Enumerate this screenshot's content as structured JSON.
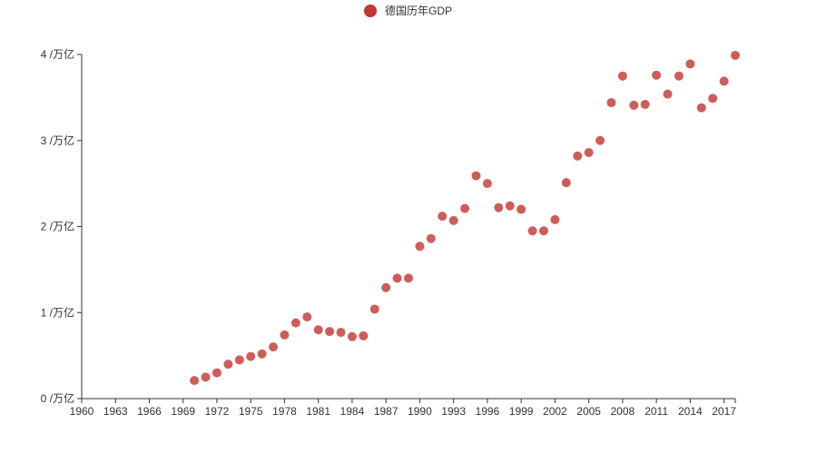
{
  "colors": {
    "series": "#c23531",
    "axis": "#333333"
  },
  "chart_data": {
    "type": "scatter",
    "legend": {
      "position": "top-center",
      "entries": [
        "德国历年GDP"
      ]
    },
    "grid": false,
    "x_ticks": [
      "1960",
      "1963",
      "1966",
      "1969",
      "1972",
      "1975",
      "1978",
      "1981",
      "1984",
      "1987",
      "1990",
      "1993",
      "1996",
      "1999",
      "2002",
      "2005",
      "2008",
      "2011",
      "2014",
      "2017"
    ],
    "y_ticks": [
      "0 /万亿",
      "1 /万亿",
      "2 /万亿",
      "3 /万亿",
      "4 /万亿"
    ],
    "xlim": [
      1960,
      2018
    ],
    "ylim": [
      0,
      4
    ],
    "series": [
      {
        "name": "德国历年GDP",
        "points": [
          {
            "x": 1970,
            "y": 0.21
          },
          {
            "x": 1971,
            "y": 0.25
          },
          {
            "x": 1972,
            "y": 0.3
          },
          {
            "x": 1973,
            "y": 0.4
          },
          {
            "x": 1974,
            "y": 0.45
          },
          {
            "x": 1975,
            "y": 0.49
          },
          {
            "x": 1976,
            "y": 0.52
          },
          {
            "x": 1977,
            "y": 0.6
          },
          {
            "x": 1978,
            "y": 0.74
          },
          {
            "x": 1979,
            "y": 0.88
          },
          {
            "x": 1980,
            "y": 0.95
          },
          {
            "x": 1981,
            "y": 0.8
          },
          {
            "x": 1982,
            "y": 0.78
          },
          {
            "x": 1983,
            "y": 0.77
          },
          {
            "x": 1984,
            "y": 0.72
          },
          {
            "x": 1985,
            "y": 0.73
          },
          {
            "x": 1986,
            "y": 1.04
          },
          {
            "x": 1987,
            "y": 1.29
          },
          {
            "x": 1988,
            "y": 1.4
          },
          {
            "x": 1989,
            "y": 1.4
          },
          {
            "x": 1990,
            "y": 1.77
          },
          {
            "x": 1991,
            "y": 1.86
          },
          {
            "x": 1992,
            "y": 2.12
          },
          {
            "x": 1993,
            "y": 2.07
          },
          {
            "x": 1994,
            "y": 2.21
          },
          {
            "x": 1995,
            "y": 2.59
          },
          {
            "x": 1996,
            "y": 2.5
          },
          {
            "x": 1997,
            "y": 2.22
          },
          {
            "x": 1998,
            "y": 2.24
          },
          {
            "x": 1999,
            "y": 2.2
          },
          {
            "x": 2000,
            "y": 1.95
          },
          {
            "x": 2001,
            "y": 1.95
          },
          {
            "x": 2002,
            "y": 2.08
          },
          {
            "x": 2003,
            "y": 2.51
          },
          {
            "x": 2004,
            "y": 2.82
          },
          {
            "x": 2005,
            "y": 2.86
          },
          {
            "x": 2006,
            "y": 3.0
          },
          {
            "x": 2007,
            "y": 3.44
          },
          {
            "x": 2008,
            "y": 3.75
          },
          {
            "x": 2009,
            "y": 3.41
          },
          {
            "x": 2010,
            "y": 3.42
          },
          {
            "x": 2011,
            "y": 3.76
          },
          {
            "x": 2012,
            "y": 3.54
          },
          {
            "x": 2013,
            "y": 3.75
          },
          {
            "x": 2014,
            "y": 3.89
          },
          {
            "x": 2015,
            "y": 3.38
          },
          {
            "x": 2016,
            "y": 3.49
          },
          {
            "x": 2017,
            "y": 3.69
          },
          {
            "x": 2018,
            "y": 3.99
          }
        ]
      }
    ]
  }
}
